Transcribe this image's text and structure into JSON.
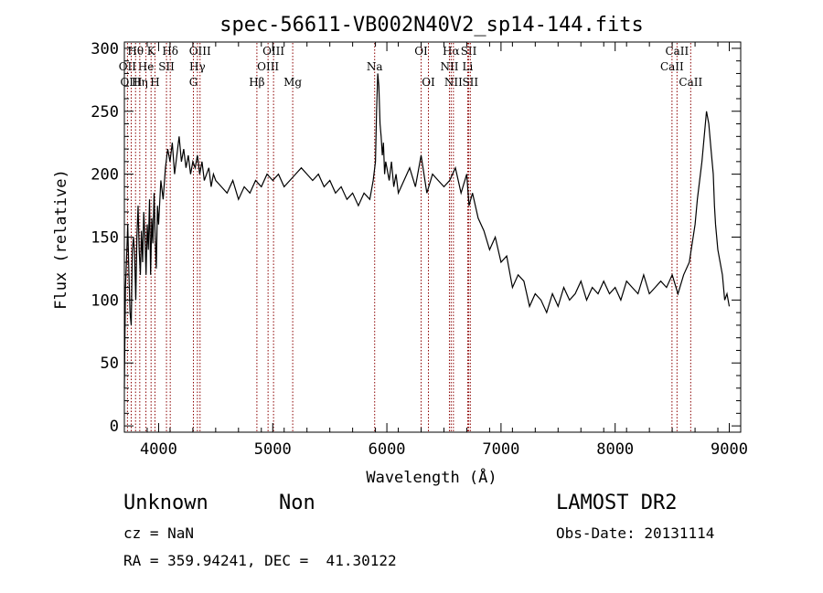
{
  "title": "spec-56611-VB002N40V2_sp14-144.fits",
  "info": {
    "object_class": "Unknown",
    "subclass": "Non",
    "survey": "LAMOST DR2",
    "cz": "cz = NaN",
    "obs_date": "Obs-Date: 20131114",
    "coords": "RA = 359.94241, DEC =  41.30122"
  },
  "chart_data": {
    "type": "line",
    "title": "spec-56611-VB002N40V2_sp14-144.fits",
    "xlabel": "Wavelength (Å)",
    "ylabel": "Flux (relative)",
    "xlim": [
      3700,
      9100
    ],
    "ylim": [
      -5,
      305
    ],
    "xticks": [
      4000,
      5000,
      6000,
      7000,
      8000,
      9000
    ],
    "yticks": [
      0,
      50,
      100,
      150,
      200,
      250,
      300
    ],
    "grid": false,
    "series": [
      {
        "x": [
          3700,
          3710,
          3720,
          3730,
          3740,
          3750,
          3760,
          3770,
          3780,
          3790,
          3800,
          3810,
          3820,
          3830,
          3840,
          3850,
          3860,
          3870,
          3880,
          3890,
          3900,
          3910,
          3920,
          3930,
          3940,
          3950,
          3960,
          3970,
          3980,
          3990,
          4000,
          4020,
          4040,
          4060,
          4080,
          4100,
          4120,
          4140,
          4160,
          4180,
          4200,
          4220,
          4240,
          4260,
          4280,
          4300,
          4320,
          4340,
          4360,
          4380,
          4400,
          4420,
          4440,
          4460,
          4480,
          4500,
          4550,
          4600,
          4650,
          4700,
          4750,
          4800,
          4850,
          4900,
          4950,
          5000,
          5050,
          5100,
          5150,
          5200,
          5250,
          5300,
          5350,
          5400,
          5450,
          5500,
          5550,
          5600,
          5650,
          5700,
          5750,
          5800,
          5850,
          5880,
          5900,
          5910,
          5920,
          5930,
          5940,
          5950,
          5960,
          5970,
          5980,
          5990,
          6000,
          6020,
          6040,
          6060,
          6080,
          6100,
          6150,
          6200,
          6250,
          6300,
          6350,
          6400,
          6450,
          6500,
          6550,
          6600,
          6650,
          6700,
          6720,
          6750,
          6800,
          6850,
          6900,
          6950,
          7000,
          7050,
          7100,
          7150,
          7200,
          7250,
          7300,
          7350,
          7400,
          7450,
          7500,
          7550,
          7600,
          7650,
          7700,
          7750,
          7800,
          7850,
          7900,
          7950,
          8000,
          8050,
          8100,
          8150,
          8200,
          8250,
          8300,
          8350,
          8400,
          8450,
          8500,
          8550,
          8600,
          8650,
          8700,
          8720,
          8740,
          8760,
          8780,
          8800,
          8820,
          8840,
          8860,
          8870,
          8880,
          8900,
          8920,
          8940,
          8960,
          8980,
          9000
        ],
        "y": [
          30,
          110,
          135,
          160,
          120,
          90,
          80,
          140,
          150,
          135,
          100,
          150,
          175,
          140,
          120,
          155,
          130,
          170,
          150,
          120,
          160,
          140,
          180,
          120,
          165,
          145,
          185,
          150,
          125,
          175,
          160,
          195,
          180,
          205,
          220,
          210,
          225,
          200,
          215,
          230,
          210,
          220,
          205,
          215,
          200,
          210,
          205,
          215,
          200,
          210,
          195,
          200,
          205,
          190,
          200,
          195,
          190,
          185,
          195,
          180,
          190,
          185,
          195,
          190,
          200,
          195,
          200,
          190,
          195,
          200,
          205,
          200,
          195,
          200,
          190,
          195,
          185,
          190,
          180,
          185,
          175,
          185,
          180,
          195,
          210,
          250,
          280,
          270,
          240,
          230,
          215,
          225,
          200,
          210,
          205,
          195,
          210,
          190,
          200,
          185,
          195,
          205,
          190,
          215,
          185,
          200,
          195,
          190,
          195,
          205,
          185,
          200,
          175,
          185,
          165,
          155,
          140,
          150,
          130,
          135,
          110,
          120,
          115,
          95,
          105,
          100,
          90,
          105,
          95,
          110,
          100,
          105,
          115,
          100,
          110,
          105,
          115,
          105,
          110,
          100,
          115,
          110,
          105,
          120,
          105,
          110,
          115,
          110,
          120,
          105,
          120,
          130,
          160,
          180,
          195,
          210,
          230,
          250,
          240,
          220,
          200,
          175,
          160,
          140,
          130,
          120,
          100,
          105,
          95
        ]
      }
    ],
    "lines": [
      {
        "name": "Hθ",
        "wl": 3798,
        "row": 0
      },
      {
        "name": "K",
        "wl": 3934,
        "row": 0
      },
      {
        "name": "Hδ",
        "wl": 4102,
        "row": 0
      },
      {
        "name": "OIII",
        "wl": 4363,
        "row": 0
      },
      {
        "name": "OIII",
        "wl": 5007,
        "row": 0
      },
      {
        "name": "Na",
        "wl": 5893,
        "row": 1
      },
      {
        "name": "OI",
        "wl": 6300,
        "row": 0
      },
      {
        "name": "Hα",
        "wl": 6563,
        "row": 0
      },
      {
        "name": "SII",
        "wl": 6717,
        "row": 0
      },
      {
        "name": "CaII",
        "wl": 8542,
        "row": 0
      },
      {
        "name": "OII",
        "wl": 3727,
        "row": 1
      },
      {
        "name": "He",
        "wl": 3889,
        "row": 1
      },
      {
        "name": "SII",
        "wl": 4069,
        "row": 1
      },
      {
        "name": "Hγ",
        "wl": 4340,
        "row": 1
      },
      {
        "name": "OIII",
        "wl": 4959,
        "row": 1
      },
      {
        "name": "NII",
        "wl": 6548,
        "row": 1
      },
      {
        "name": "Li",
        "wl": 6708,
        "row": 1
      },
      {
        "name": "CaII",
        "wl": 8498,
        "row": 1
      },
      {
        "name": "OIII",
        "wl": 3760,
        "row": 2
      },
      {
        "name": "Hη",
        "wl": 3835,
        "row": 2
      },
      {
        "name": "H",
        "wl": 3968,
        "row": 2
      },
      {
        "name": "G",
        "wl": 4305,
        "row": 2
      },
      {
        "name": "Hβ",
        "wl": 4861,
        "row": 2
      },
      {
        "name": "Mg",
        "wl": 5175,
        "row": 2
      },
      {
        "name": "OI",
        "wl": 6364,
        "row": 2
      },
      {
        "name": "NII",
        "wl": 6583,
        "row": 2
      },
      {
        "name": "SII",
        "wl": 6731,
        "row": 2
      },
      {
        "name": "CaII",
        "wl": 8662,
        "row": 2
      }
    ],
    "line_color": "#8b0000",
    "spectrum_color": "#000000"
  }
}
